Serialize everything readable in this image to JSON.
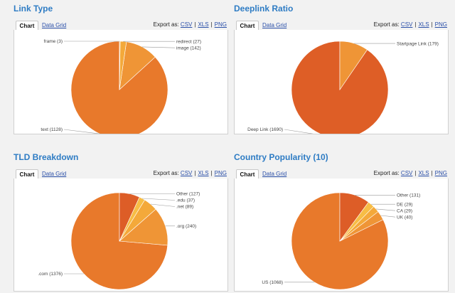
{
  "export_label": "Export as:",
  "export_formats": [
    "CSV",
    "XLS",
    "PNG"
  ],
  "tab_chart": "Chart",
  "tab_grid": "Data Grid",
  "colors": {
    "title": "#2e7cc4",
    "link": "#2a4fa8"
  },
  "chart_data": [
    {
      "type": "pie",
      "title": "Link Type",
      "labels": [
        "text (1128)",
        "image (142)",
        "redirect (27)",
        "frame (3)"
      ],
      "values": [
        1128,
        142,
        27,
        3
      ],
      "colors": [
        "#e8792b",
        "#ef9536",
        "#f4a93a",
        "#f6b845"
      ]
    },
    {
      "type": "pie",
      "title": "Deeplink Ratio",
      "labels": [
        "Deep Link (1690)",
        "Startpage Link (179)"
      ],
      "values": [
        1690,
        179
      ],
      "colors": [
        "#de5e26",
        "#ef9536"
      ]
    },
    {
      "type": "pie",
      "title": "TLD Breakdown",
      "labels": [
        ".com (1376)",
        ".org (240)",
        ".net (89)",
        ".edu (37)",
        "Other (127)"
      ],
      "values": [
        1376,
        240,
        89,
        37,
        127
      ],
      "colors": [
        "#e8792b",
        "#ef9536",
        "#f4a93a",
        "#f7bd45",
        "#dd5d27"
      ]
    },
    {
      "type": "pie",
      "title": "Country Popularity (10)",
      "labels": [
        "US (1068)",
        "UK (40)",
        "CA (29)",
        "DE (29)",
        "Other (131)"
      ],
      "values": [
        1068,
        40,
        29,
        29,
        131
      ],
      "colors": [
        "#e8792b",
        "#ef9536",
        "#f4a93a",
        "#f7bd45",
        "#dd5d27"
      ]
    }
  ]
}
